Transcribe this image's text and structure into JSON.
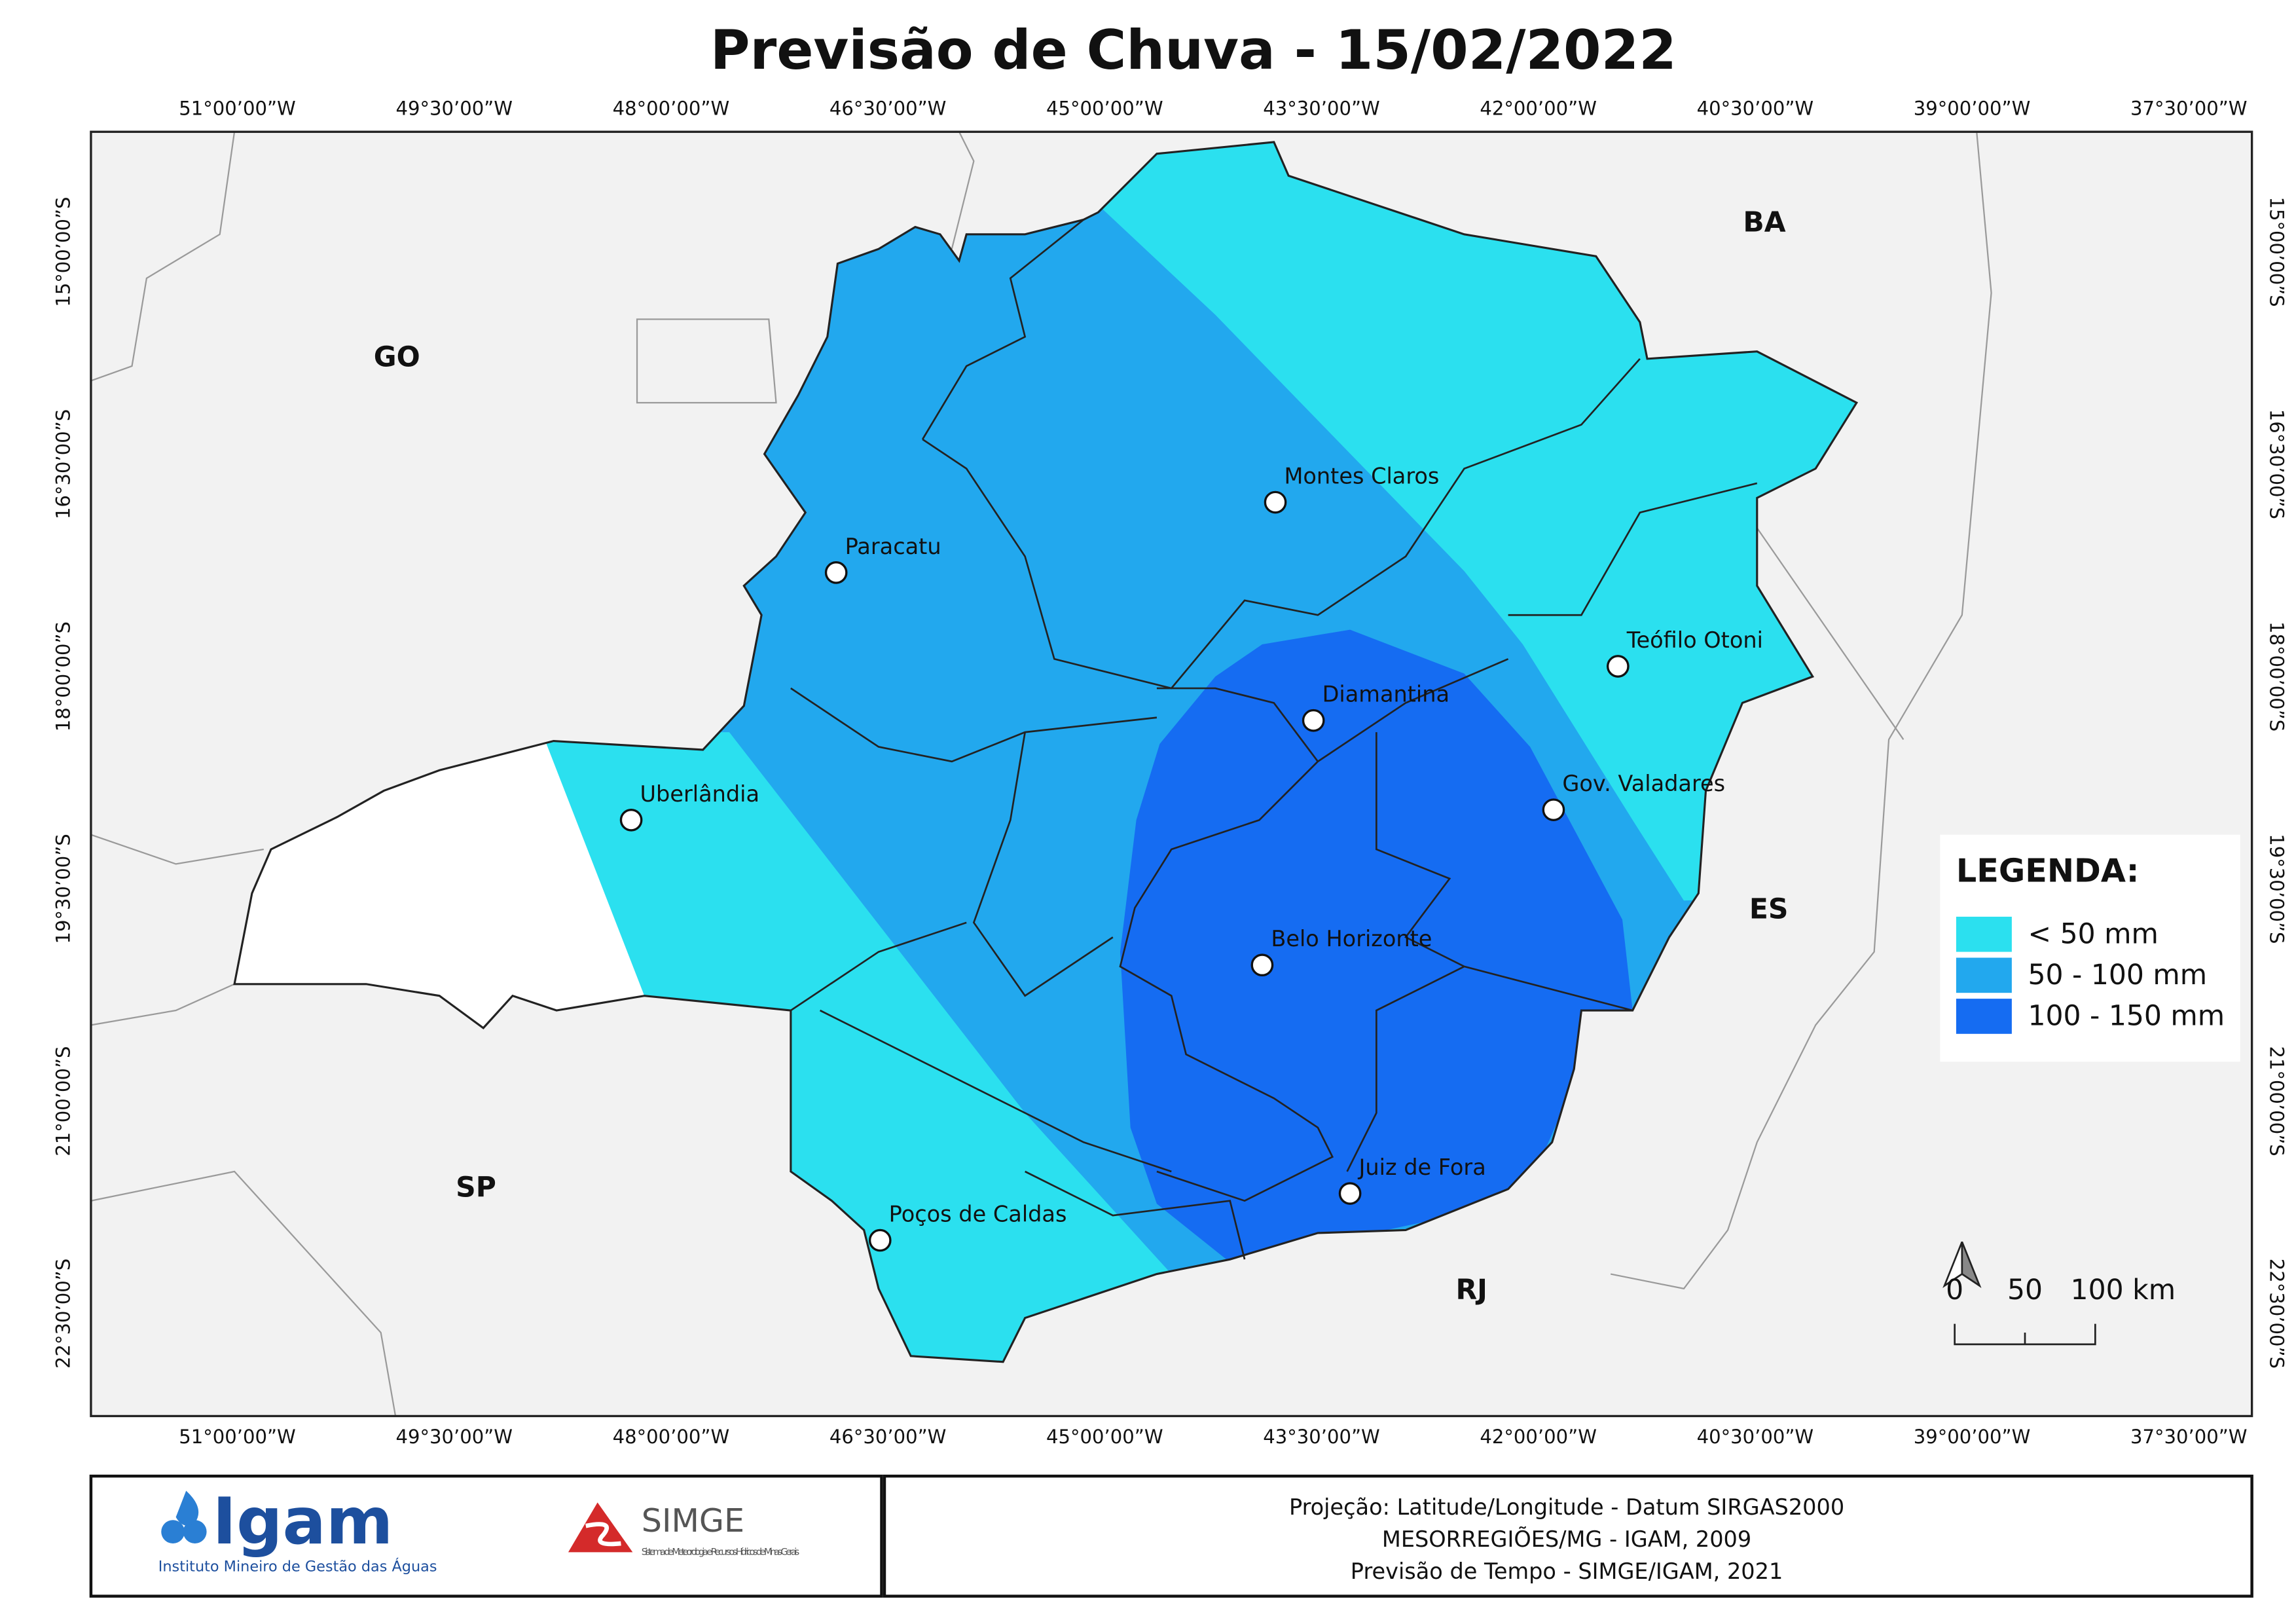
{
  "title": "Previsão de Chuva - 15/02/2022",
  "longitude_labels": [
    "51°00’00”W",
    "49°30’00”W",
    "48°00’00”W",
    "46°30’00”W",
    "45°00’00”W",
    "43°30’00”W",
    "42°00’00”W",
    "40°30’00”W",
    "39°00’00”W",
    "37°30’00”W"
  ],
  "latitude_labels": [
    "15°00’00”S",
    "16°30’00”S",
    "18°00’00”S",
    "19°30’00”S",
    "21°00’00”S",
    "22°30’00”S"
  ],
  "states": [
    "GO",
    "BA",
    "ES",
    "SP",
    "RJ"
  ],
  "cities": [
    "Montes Claros",
    "Paracatu",
    "Teófilo Otoni",
    "Diamantina",
    "Uberlândia",
    "Gov. Valadares",
    "Belo Horizonte",
    "Poços de Caldas",
    "Juiz de Fora"
  ],
  "legend": {
    "title": "LEGENDA:",
    "items": [
      {
        "label": "< 50 mm",
        "color": "#2be0ef"
      },
      {
        "label": "50 - 100 mm",
        "color": "#22a8ee"
      },
      {
        "label": "100 - 150 mm",
        "color": "#156cf2"
      }
    ]
  },
  "scale_bar": [
    "0",
    "50",
    "100 km"
  ],
  "footer": {
    "igam": {
      "name": "Igam",
      "subtitle": "Instituto Mineiro de Gestão das Águas"
    },
    "simge": {
      "name": "SIMGE",
      "subtitle": "Sistema de Meteorologia e Recursos Hídricos de Minas Gerais"
    },
    "credits": [
      "Projeção: Latitude/Longitude - Datum SIRGAS2000",
      "MESORREGIÕES/MG - IGAM, 2009",
      "Previsão de Tempo - SIMGE/IGAM, 2021"
    ]
  }
}
